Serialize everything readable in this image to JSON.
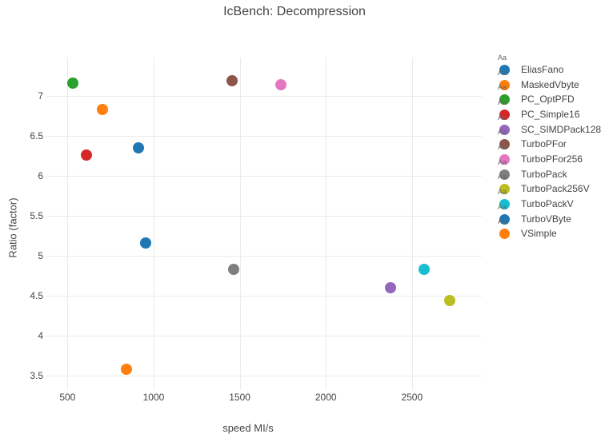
{
  "title": "IcBench: Decompression",
  "colors": {
    "text": "#444444",
    "grid": "#ebebeb",
    "legend_sample_text_color": "#666666",
    "background": "#ffffff"
  },
  "legend": {
    "sample_text": "Aa",
    "position": "right"
  },
  "chart_data": {
    "type": "scatter",
    "title": "IcBench: Decompression",
    "xlabel": "speed MI/s",
    "ylabel": "Ratio (factor)",
    "xlim": [
      373,
      2905
    ],
    "ylim": [
      3.32,
      7.48
    ],
    "xticks": [
      500,
      1000,
      1500,
      2000,
      2500
    ],
    "yticks": [
      3.5,
      4,
      4.5,
      5,
      5.5,
      6,
      6.5,
      7
    ],
    "grid": true,
    "legend_position": "right",
    "marker_size_px": 14,
    "series": [
      {
        "name": "EliasFano",
        "color": "#1f77b4",
        "x": 911,
        "y": 6.35
      },
      {
        "name": "MaskedVbyte",
        "color": "#ff7f0e",
        "x": 843,
        "y": 3.58
      },
      {
        "name": "PC_OptPFD",
        "color": "#2ca02c",
        "x": 533,
        "y": 7.16
      },
      {
        "name": "PC_Simple16",
        "color": "#d62728",
        "x": 608,
        "y": 6.26
      },
      {
        "name": "SC_SIMDPack128",
        "color": "#9467bd",
        "x": 2374,
        "y": 4.6
      },
      {
        "name": "TurboPFor",
        "color": "#8c564b",
        "x": 1455,
        "y": 7.19
      },
      {
        "name": "TurboPFor256",
        "color": "#e377c2",
        "x": 1740,
        "y": 7.14
      },
      {
        "name": "TurboPack",
        "color": "#7f7f7f",
        "x": 1463,
        "y": 4.83
      },
      {
        "name": "TurboPack256V",
        "color": "#bcbd22",
        "x": 2719,
        "y": 4.44
      },
      {
        "name": "TurboPackV",
        "color": "#17becf",
        "x": 2570,
        "y": 4.83
      },
      {
        "name": "TurboVByte",
        "color": "#1f77b4",
        "x": 956,
        "y": 5.16
      },
      {
        "name": "VSimple",
        "color": "#ff7f0e",
        "x": 705,
        "y": 6.83
      }
    ]
  }
}
